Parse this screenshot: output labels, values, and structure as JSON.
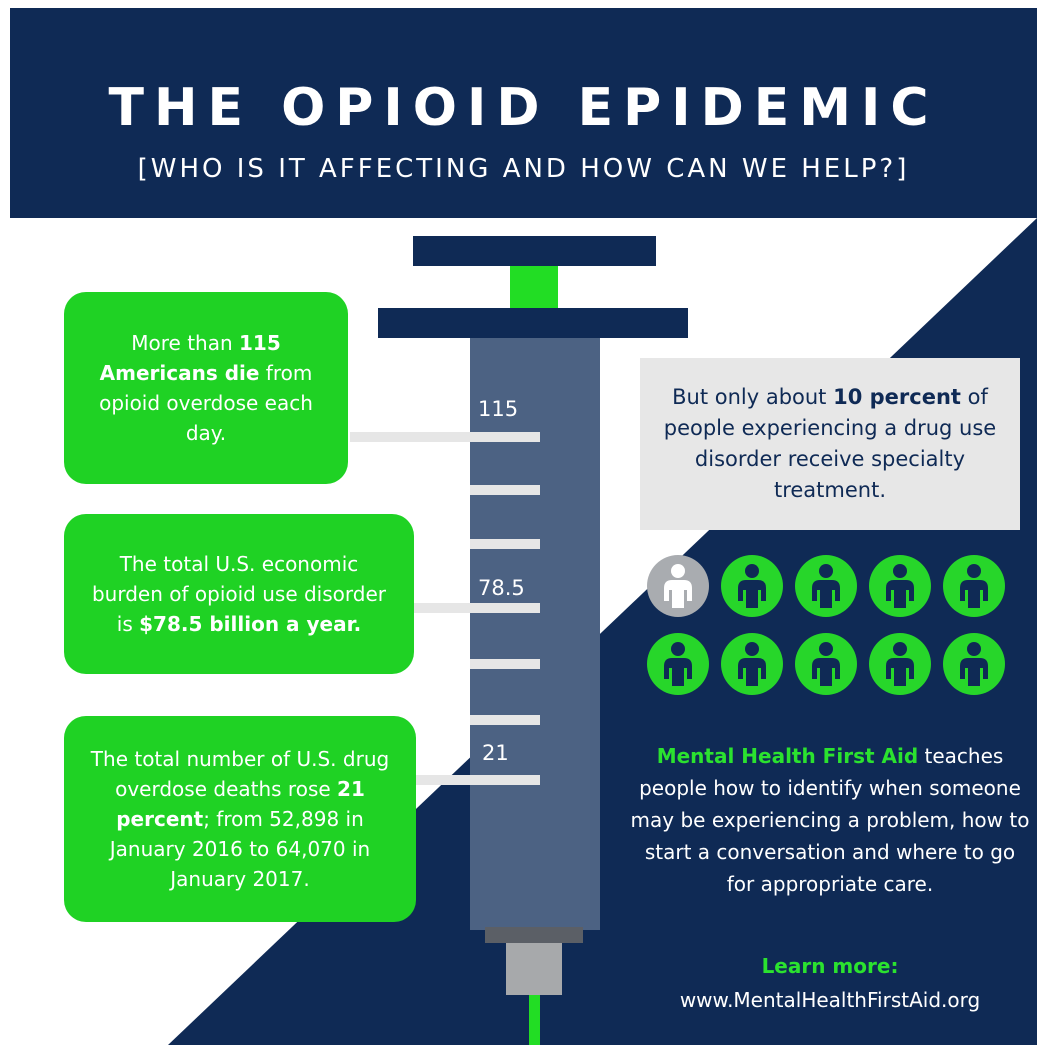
{
  "header": {
    "title": "THE OPIOID EPIDEMIC",
    "subtitle": "[WHO IS IT AFFECTING AND HOW CAN WE HELP?]"
  },
  "colors": {
    "navy": "#0f2a55",
    "green": "#1fd224",
    "barrel": "#4c6283",
    "gray_box": "#e7e7e7"
  },
  "syringe": {
    "scale_labels": [
      "115",
      "78.5",
      "21"
    ]
  },
  "cards": [
    {
      "pre": "More than ",
      "bold": "115 Americans die",
      "post": " from opioid overdose each day."
    },
    {
      "pre": "The total U.S. economic burden of opioid use disorder is ",
      "bold": "$78.5 billion a year.",
      "post": ""
    },
    {
      "pre": "The total number of U.S. drug overdose deaths rose ",
      "bold": "21 percent",
      "post": "; from 52,898 in January 2016 to 64,070 in January 2017."
    }
  ],
  "treatment": {
    "pre": "But only about ",
    "bold": "10 percent",
    "post": " of people experiencing a drug use disorder receive specialty treatment.",
    "people_total": 10,
    "people_treated": 1
  },
  "mhfa": {
    "brand": "Mental Health First Aid",
    "text": " teaches people how to identify when someone may be experiencing a problem, how to start a conversation and where to go for appropriate care.",
    "learn_more": "Learn more:",
    "url": "www.MentalHealthFirstAid.org"
  }
}
